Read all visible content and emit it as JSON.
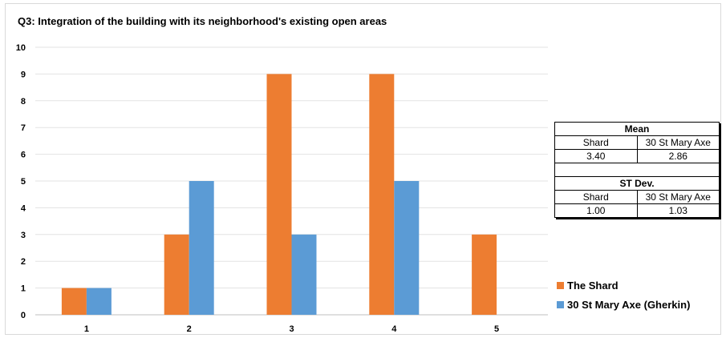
{
  "chart_data": {
    "type": "bar",
    "title": "Q3: Integration of the building with its neighborhood's existing open areas",
    "categories": [
      "1",
      "2",
      "3",
      "4",
      "5"
    ],
    "series": [
      {
        "name": "The Shard",
        "color": "#ED7D31",
        "values": [
          1,
          3,
          9,
          9,
          3
        ]
      },
      {
        "name": "30 St Mary Axe (Gherkin)",
        "color": "#5B9BD5",
        "values": [
          1,
          5,
          3,
          5,
          0
        ]
      }
    ],
    "ylim": [
      0,
      10
    ],
    "yticks": [
      "0",
      "1",
      "2",
      "3",
      "4",
      "5",
      "6",
      "7",
      "8",
      "9",
      "10"
    ],
    "grid": true,
    "legend": "right"
  },
  "stats": {
    "mean": {
      "heading": "Mean",
      "col1": "Shard",
      "col2": "30 St Mary Axe",
      "val1": "3.40",
      "val2": "2.86"
    },
    "stdev": {
      "heading": "ST Dev.",
      "col1": "Shard",
      "col2": "30 St Mary Axe",
      "val1": "1.00",
      "val2": "1.03"
    }
  }
}
